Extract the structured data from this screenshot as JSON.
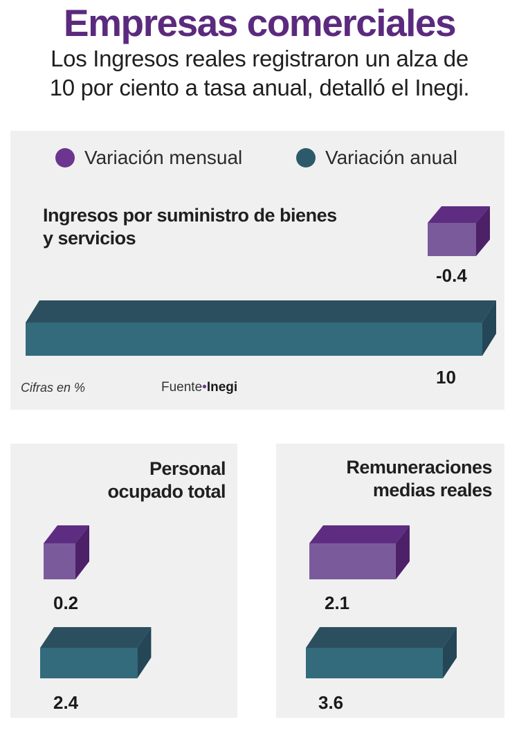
{
  "header": {
    "title": "Empresas comerciales",
    "subtitle_line1": "Los Ingresos reales registraron un alza de",
    "subtitle_line2": "10 por ciento a tasa anual, detalló el Inegi."
  },
  "legend": {
    "monthly": "Variación mensual",
    "annual": "Variación anual"
  },
  "colors": {
    "monthly": "#6b3590",
    "annual": "#2d5a6b",
    "title": "#5b2a7e",
    "panel": "#f0f0f0"
  },
  "footer": {
    "note": "Cifras en %",
    "source_label": "Fuente",
    "source_dot": "•",
    "source_name": "Inegi"
  },
  "chart_data": [
    {
      "type": "bar",
      "title": "Ingresos por suministro de bienes y servicios",
      "title_line1": "Ingresos por suministro de bienes",
      "title_line2": "y servicios",
      "categories": [
        "Variación mensual",
        "Variación anual"
      ],
      "values": [
        -0.4,
        10
      ],
      "value_labels": [
        "-0.4",
        "10"
      ],
      "unit": "%"
    },
    {
      "type": "bar",
      "title": "Personal ocupado total",
      "title_line1": "Personal",
      "title_line2": "ocupado total",
      "categories": [
        "Variación mensual",
        "Variación anual"
      ],
      "values": [
        0.2,
        2.4
      ],
      "value_labels": [
        "0.2",
        "2.4"
      ],
      "unit": "%"
    },
    {
      "type": "bar",
      "title": "Remuneraciones medias reales",
      "title_line1": "Remuneraciones",
      "title_line2": "medias reales",
      "categories": [
        "Variación mensual",
        "Variación anual"
      ],
      "values": [
        2.1,
        3.6
      ],
      "value_labels": [
        "2.1",
        "3.6"
      ],
      "unit": "%"
    }
  ]
}
